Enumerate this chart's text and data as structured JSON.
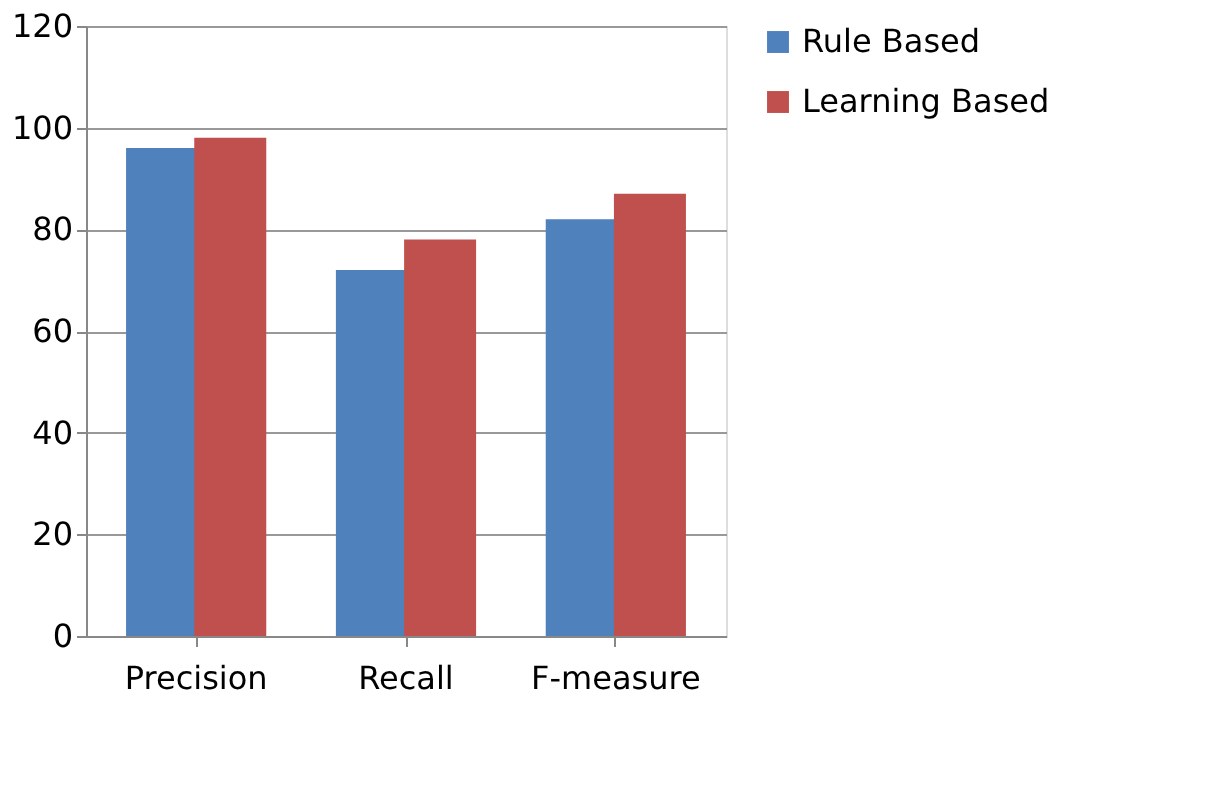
{
  "chart_data": {
    "type": "bar",
    "categories": [
      "Precision",
      "Recall",
      "F-measure"
    ],
    "series": [
      {
        "name": "Rule Based",
        "color": "#4f81bd",
        "values": [
          96,
          72,
          82
        ]
      },
      {
        "name": "Learning Based",
        "color": "#c0504d",
        "values": [
          98,
          78,
          87
        ]
      }
    ],
    "ylim": [
      0,
      120
    ],
    "yticks": [
      0,
      20,
      40,
      60,
      80,
      100,
      120
    ],
    "grid": "y",
    "legend": "right"
  }
}
